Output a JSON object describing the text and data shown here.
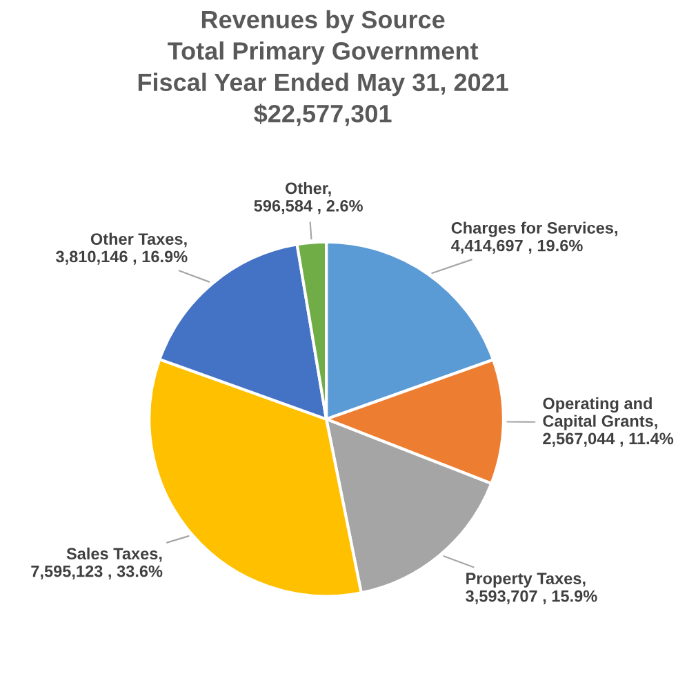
{
  "chart_data": {
    "type": "pie",
    "title": "Revenues by Source\nTotal Primary Government\nFiscal Year Ended May 31, 2021\n$22,577,301",
    "categories": [
      "Charges for Services",
      "Operating and Capital Grants",
      "Property Taxes",
      "Sales Taxes",
      "Other Taxes",
      "Other"
    ],
    "values": [
      4414697,
      2567044,
      3593707,
      7595123,
      3810146,
      596584
    ],
    "value_labels": [
      ",\n4,414,697 , 19.6%",
      ",\n2,567,044 , 11.4%",
      ",\n3,593,707 , 15.9%",
      ",\n7,595,123 , 33.6%",
      ",\n3,810,146 , 16.9%",
      ",\n596,584 , 2.6%"
    ],
    "colors": [
      "#5b9bd5",
      "#ed7d31",
      "#a5a5a5",
      "#ffc000",
      "#4472c4",
      "#70ad47"
    ],
    "legend": false
  }
}
